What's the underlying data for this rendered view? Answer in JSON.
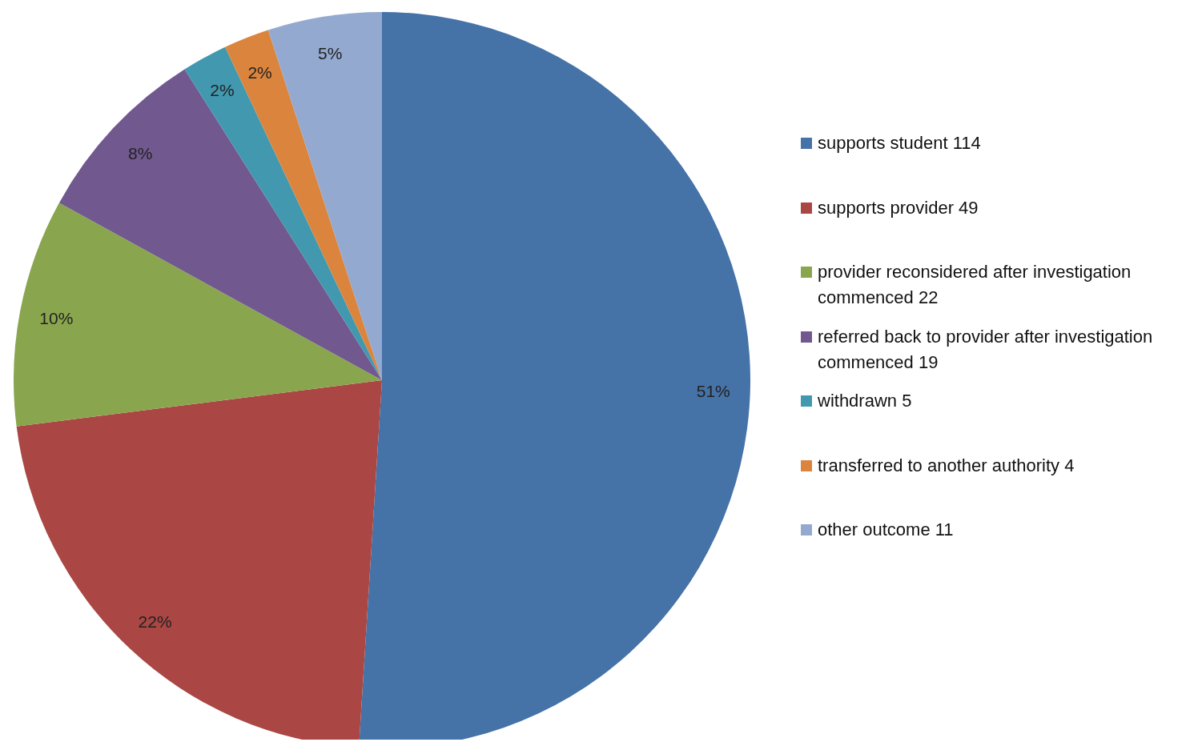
{
  "chart_data": {
    "type": "pie",
    "categories": [
      "supports student 114",
      "supports provider 49",
      "provider reconsidered after investigation commenced 22",
      "referred back to provider after investigation commenced 19",
      "withdrawn 5",
      "transferred to another authority 4",
      "other outcome 11"
    ],
    "values": [
      51,
      22,
      10,
      8,
      2,
      2,
      5
    ],
    "value_labels": [
      "51%",
      "22%",
      "10%",
      "8%",
      "2%",
      "2%",
      "5%"
    ],
    "colors": [
      "#4572a7",
      "#aa4643",
      "#89a54e",
      "#71588f",
      "#4198af",
      "#db843d",
      "#93a9cf"
    ],
    "legend": "right"
  }
}
